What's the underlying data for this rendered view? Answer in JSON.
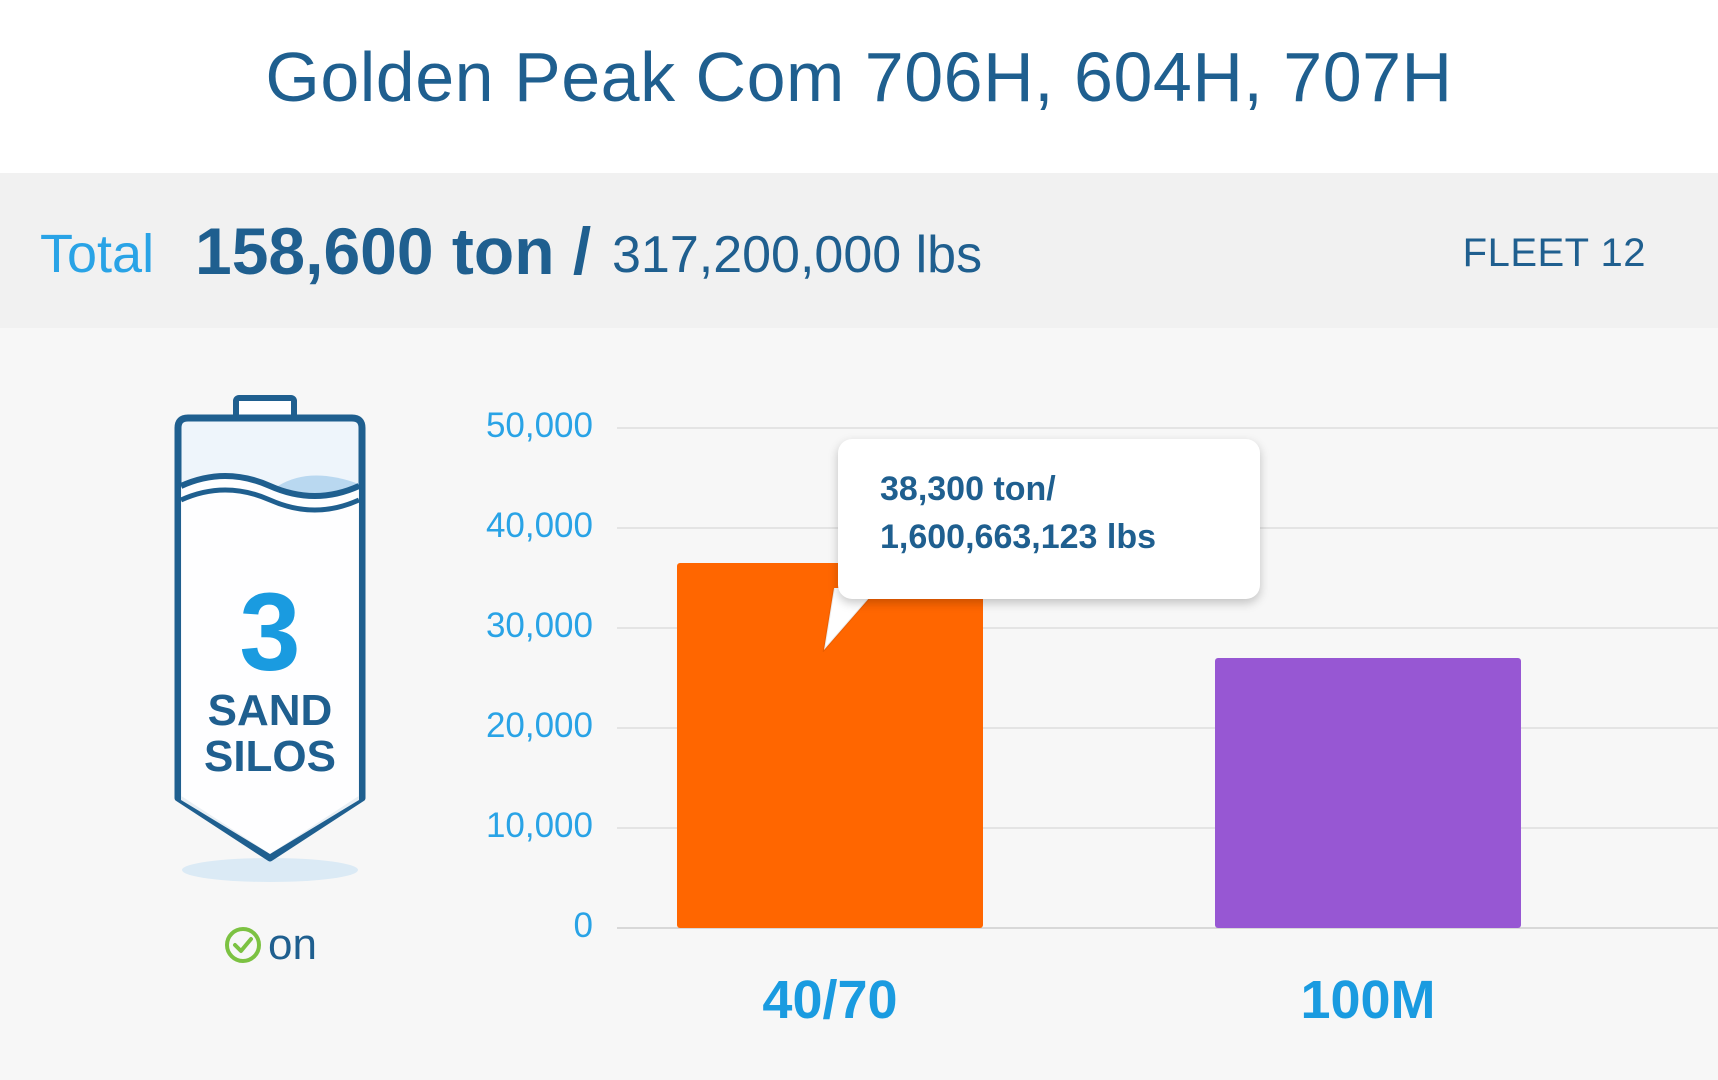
{
  "header": {
    "title": "Golden Peak Com 706H, 604H, 707H"
  },
  "totals": {
    "label": "Total",
    "tons": "158,600 ton /",
    "lbs": "317,200,000 lbs",
    "fleet": "FLEET 12"
  },
  "silo": {
    "count": "3",
    "label_line1": "SAND",
    "label_line2": "SILOS",
    "status": "on",
    "icon": "sand-silo-icon",
    "status_icon": "check-circle-icon",
    "status_color": "#7cc242"
  },
  "tooltip": {
    "line1": "38,300 ton/",
    "line2": "1,600,663,123 lbs"
  },
  "chart_data": {
    "type": "bar",
    "categories": [
      "40/70",
      "100M"
    ],
    "values": [
      36500,
      27000
    ],
    "colors": [
      "#ff6600",
      "#9757d3"
    ],
    "ylim": [
      0,
      50000
    ],
    "yticks": [
      "0",
      "10,000",
      "20,000",
      "30,000",
      "40,000",
      "50,000"
    ],
    "grid": true,
    "title": "",
    "xlabel": "",
    "ylabel": ""
  }
}
